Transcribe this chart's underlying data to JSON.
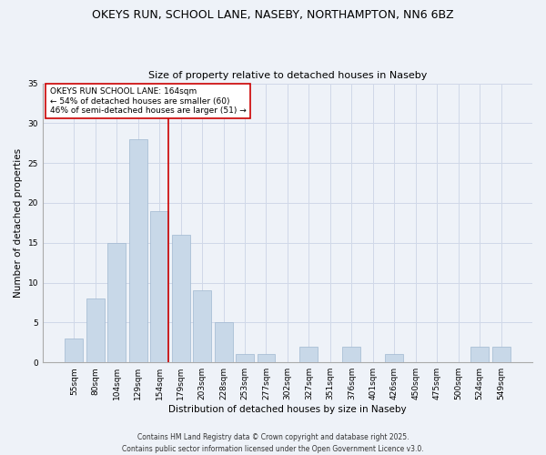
{
  "title_line1": "OKEYS RUN, SCHOOL LANE, NASEBY, NORTHAMPTON, NN6 6BZ",
  "title_line2": "Size of property relative to detached houses in Naseby",
  "xlabel": "Distribution of detached houses by size in Naseby",
  "ylabel": "Number of detached properties",
  "categories": [
    "55sqm",
    "80sqm",
    "104sqm",
    "129sqm",
    "154sqm",
    "179sqm",
    "203sqm",
    "228sqm",
    "253sqm",
    "277sqm",
    "302sqm",
    "327sqm",
    "351sqm",
    "376sqm",
    "401sqm",
    "426sqm",
    "450sqm",
    "475sqm",
    "500sqm",
    "524sqm",
    "549sqm"
  ],
  "values": [
    3,
    8,
    15,
    28,
    19,
    16,
    9,
    5,
    1,
    1,
    0,
    2,
    0,
    2,
    0,
    1,
    0,
    0,
    0,
    2,
    2
  ],
  "bar_color": "#c8d8e8",
  "bar_edge_color": "#a0b8d0",
  "grid_color": "#d0d8e8",
  "background_color": "#eef2f8",
  "vline_x_index": 4,
  "vline_color": "#cc0000",
  "annotation_title": "OKEYS RUN SCHOOL LANE: 164sqm",
  "annotation_line1": "← 54% of detached houses are smaller (60)",
  "annotation_line2": "46% of semi-detached houses are larger (51) →",
  "annotation_box_color": "#ffffff",
  "annotation_box_edge": "#cc0000",
  "ylim": [
    0,
    35
  ],
  "yticks": [
    0,
    5,
    10,
    15,
    20,
    25,
    30,
    35
  ],
  "footer_line1": "Contains HM Land Registry data © Crown copyright and database right 2025.",
  "footer_line2": "Contains public sector information licensed under the Open Government Licence v3.0.",
  "title_fontsize": 9,
  "subtitle_fontsize": 8,
  "axis_label_fontsize": 7.5,
  "tick_fontsize": 6.5,
  "annotation_fontsize": 6.5,
  "footer_fontsize": 5.5
}
